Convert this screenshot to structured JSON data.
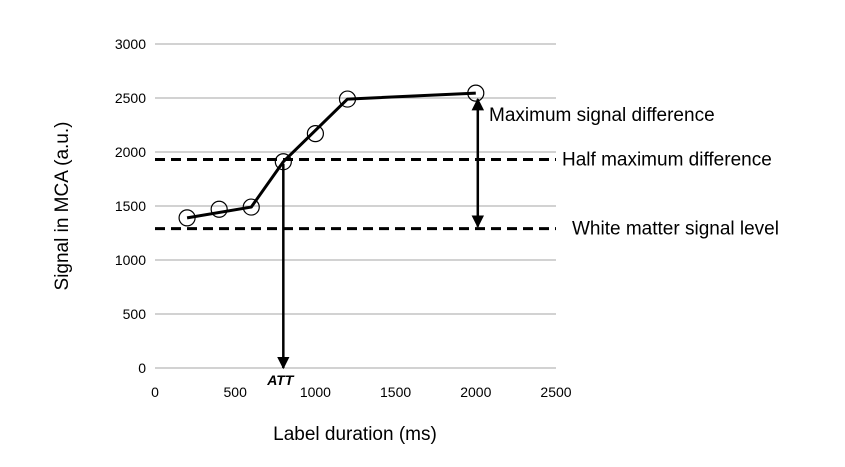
{
  "chart_data": {
    "type": "line",
    "title": "",
    "xlabel": "Label duration (ms)",
    "ylabel": "Signal in MCA (a.u.)",
    "xlim": [
      0,
      2500
    ],
    "ylim": [
      0,
      3000
    ],
    "x_ticks": [
      0,
      500,
      1000,
      1500,
      2000,
      2500
    ],
    "y_ticks": [
      0,
      500,
      1000,
      1500,
      2000,
      2500,
      3000
    ],
    "grid": "horizontal",
    "legend": "none",
    "series": [
      {
        "x": [
          200,
          400,
          600,
          800,
          1000,
          1200,
          2000
        ],
        "y": [
          1390,
          1470,
          1490,
          1910,
          2170,
          2490,
          2545
        ],
        "line_color": "#000000",
        "marker": "open-circle"
      }
    ],
    "fit_line": {
      "x": [
        200,
        600,
        800,
        1200,
        2000
      ],
      "y": [
        1390,
        1490,
        1910,
        2490,
        2545
      ]
    },
    "reference_lines": [
      {
        "y": 1930,
        "style": "dashed",
        "label": "Half maximum difference"
      },
      {
        "y": 1290,
        "style": "dashed",
        "label": "White matter signal level"
      }
    ],
    "annotations": [
      {
        "label": "Maximum signal difference",
        "type": "double-arrow",
        "x": 2000,
        "y1": 1290,
        "y2": 2545
      },
      {
        "label": "ATT",
        "type": "down-arrow",
        "x": 800,
        "y_from": 1910,
        "y_to": 0
      }
    ]
  }
}
